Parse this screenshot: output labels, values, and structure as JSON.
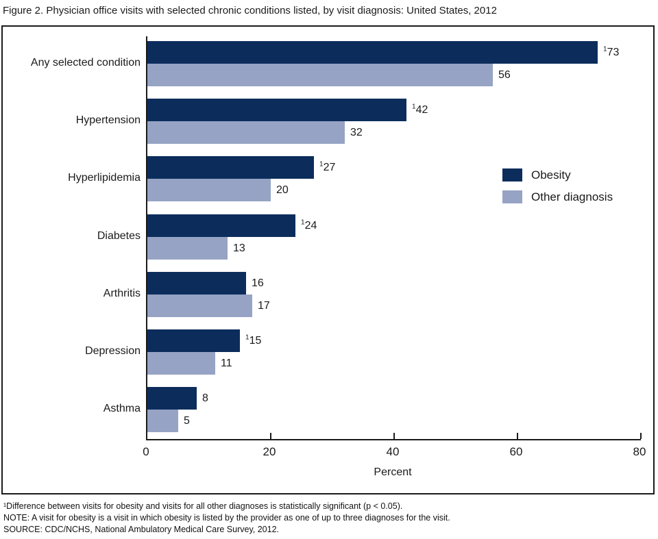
{
  "page": {
    "title": "Figure 2. Physician office visits with selected chronic conditions listed, by visit diagnosis: United States, 2012"
  },
  "chart_data": {
    "type": "bar",
    "orientation": "horizontal",
    "title": "Figure 2. Physician office visits with selected chronic conditions listed, by visit diagnosis: United States, 2012",
    "categories": [
      "Any selected condition",
      "Hypertension",
      "Hyperlipidemia",
      "Diabetes",
      "Arthritis",
      "Depression",
      "Asthma"
    ],
    "series": [
      {
        "name": "Obesity",
        "color": "#0c2d5c",
        "values": [
          73,
          42,
          27,
          24,
          16,
          15,
          8
        ],
        "significant": [
          true,
          true,
          true,
          true,
          false,
          true,
          false
        ]
      },
      {
        "name": "Other diagnosis",
        "color": "#96a3c4",
        "values": [
          56,
          32,
          20,
          13,
          17,
          11,
          5
        ],
        "significant": [
          false,
          false,
          false,
          false,
          false,
          false,
          false
        ]
      }
    ],
    "significance_marker": "¹",
    "xlabel": "Percent",
    "xlim": [
      0,
      80
    ],
    "xticks": [
      0,
      20,
      40,
      60,
      80
    ],
    "grid": false,
    "legend_position": "right-middle",
    "axis_color": "#1a1a1a"
  },
  "footnotes": [
    "¹Difference between visits for obesity and visits for all other diagnoses is statistically significant (p < 0.05).",
    "NOTE: A visit for obesity is a visit in which obesity is listed by the provider as one of up to three diagnoses for the visit.",
    "SOURCE: CDC/NCHS, National Ambulatory Medical Care Survey, 2012."
  ]
}
